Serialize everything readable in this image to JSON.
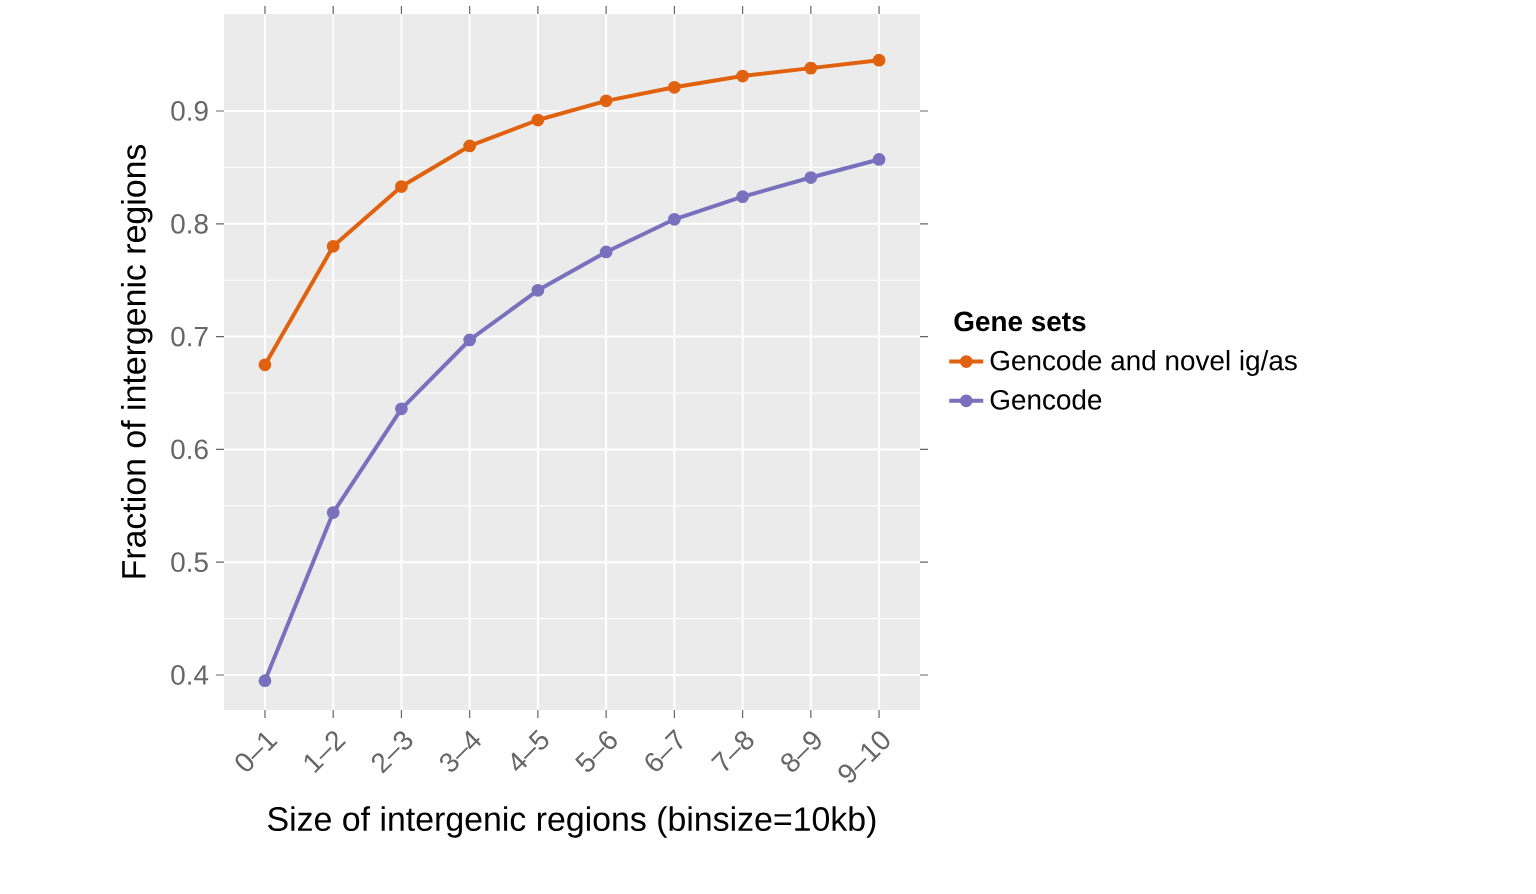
{
  "chart_data": {
    "type": "line",
    "xlabel": "Size of intergenic regions (binsize=10kb)",
    "ylabel": "Fraction of intergenic regions",
    "legend_title": "Gene sets",
    "categories": [
      "0–1",
      "1–2",
      "2–3",
      "3–4",
      "4–5",
      "5–6",
      "6–7",
      "7–8",
      "8–9",
      "9–10"
    ],
    "series": [
      {
        "name": "Gencode and novel ig/as",
        "color": "#e0620e",
        "values": [
          0.675,
          0.78,
          0.833,
          0.869,
          0.892,
          0.909,
          0.921,
          0.931,
          0.938,
          0.945
        ]
      },
      {
        "name": "Gencode",
        "color": "#7b70bd",
        "values": [
          0.395,
          0.544,
          0.636,
          0.697,
          0.741,
          0.775,
          0.804,
          0.824,
          0.841,
          0.857
        ]
      }
    ],
    "ylim": [
      0.369,
      0.986
    ],
    "yticks": [
      0.4,
      0.5,
      0.6,
      0.7,
      0.8,
      0.9
    ],
    "grid": true,
    "legend": "right",
    "marker": "circle",
    "line_style": "solid"
  }
}
